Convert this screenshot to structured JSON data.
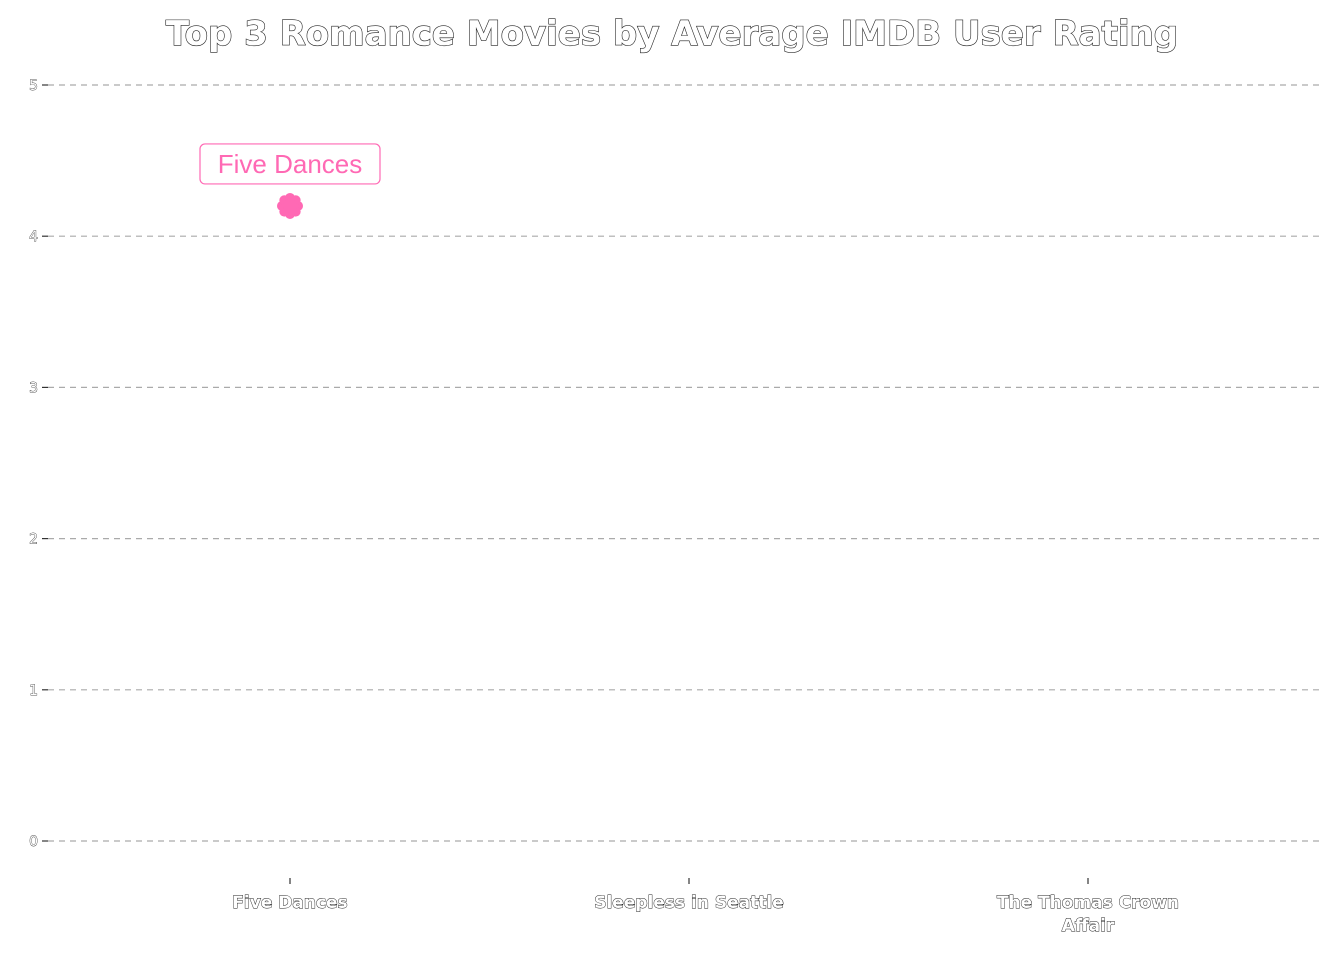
{
  "chart_data": {
    "type": "scatter",
    "title": "Top 3 Romance Movies by Average IMDB User Rating",
    "xlabel": "",
    "ylabel": "",
    "categories": [
      "Five Dances",
      "Sleepless in Seattle",
      "The Thomas Crown Affair"
    ],
    "points": [
      {
        "category": "Five Dances",
        "value": 4.2,
        "label": "Five Dances"
      }
    ],
    "ylim": [
      0,
      5
    ],
    "yticks": [
      0,
      1,
      2,
      3,
      4,
      5
    ],
    "grid": true,
    "marker_color": "#ff69b4"
  }
}
